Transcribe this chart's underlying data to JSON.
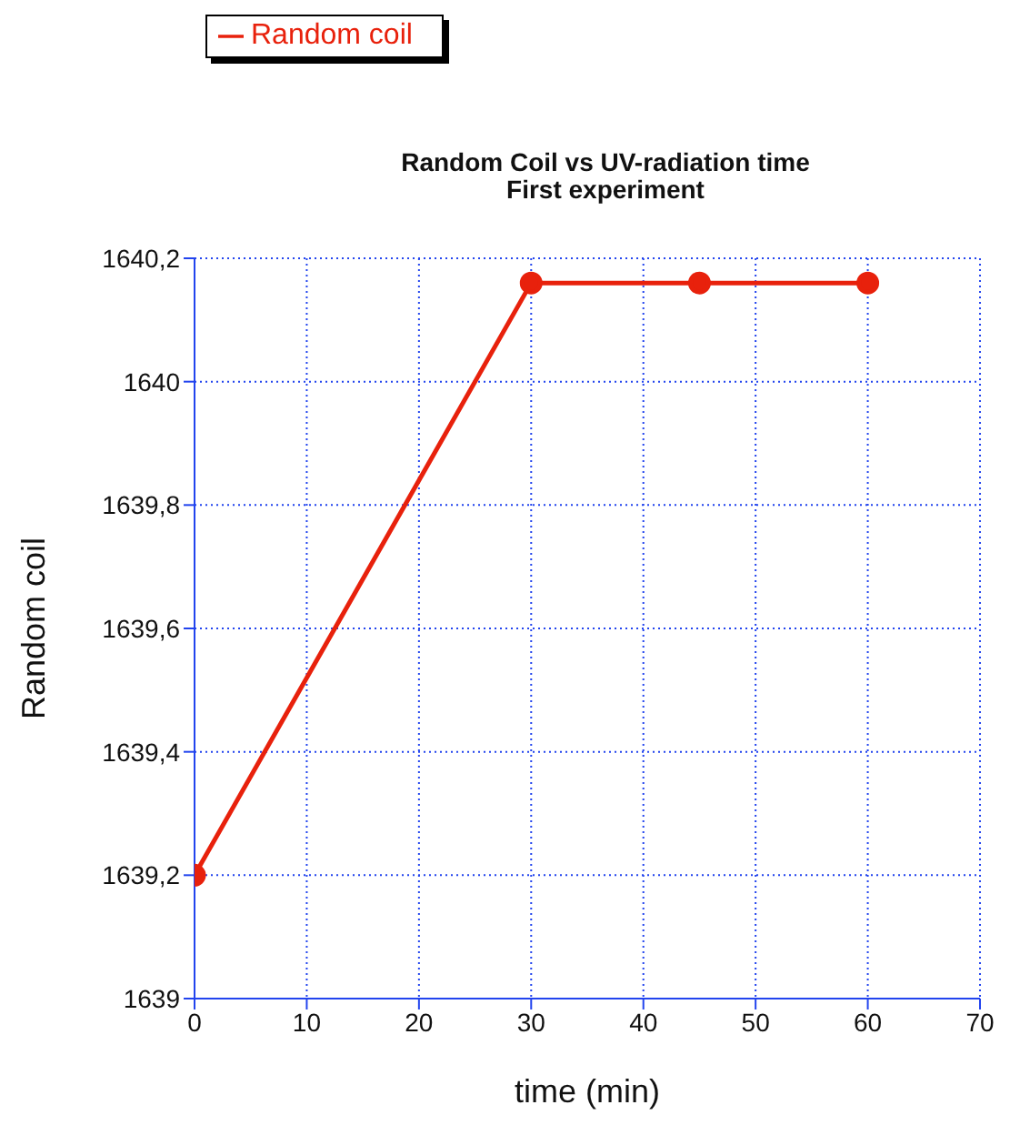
{
  "chart_data": {
    "type": "line",
    "title": "Random Coil vs UV-radiation time\nFirst experiment",
    "xlabel": "time (min)",
    "ylabel": "Random coil",
    "x": [
      0,
      30,
      45,
      60
    ],
    "series": [
      {
        "name": "Random coil",
        "color": "#e8210c",
        "values": [
          1639.2,
          1640.16,
          1640.16,
          1640.16
        ]
      }
    ],
    "xlim": [
      0,
      70
    ],
    "xticks": [
      0,
      10,
      20,
      30,
      40,
      50,
      60,
      70
    ],
    "ylim": [
      1639,
      1640.2
    ],
    "yticks": [
      1639,
      {
        "value": 1639.2,
        "label": "1639,2"
      },
      {
        "value": 1639.4,
        "label": "1639,4"
      },
      {
        "value": 1639.6,
        "label": "1639,6"
      },
      {
        "value": 1639.8,
        "label": "1639,8"
      },
      1640,
      {
        "value": 1640.2,
        "label": "1640,2"
      }
    ],
    "grid": true,
    "legend": "top left",
    "marker": "circle",
    "line_style": "solid"
  }
}
